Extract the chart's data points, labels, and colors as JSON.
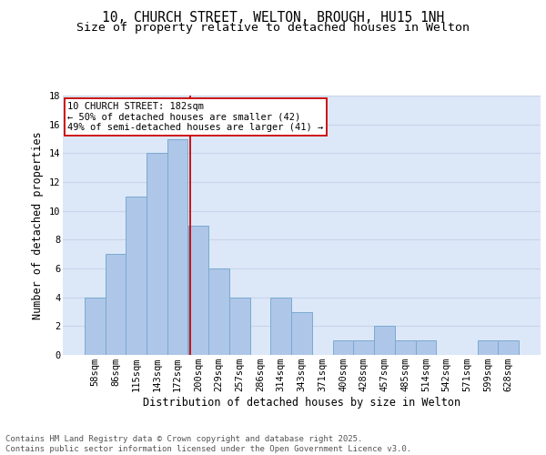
{
  "title_line1": "10, CHURCH STREET, WELTON, BROUGH, HU15 1NH",
  "title_line2": "Size of property relative to detached houses in Welton",
  "xlabel": "Distribution of detached houses by size in Welton",
  "ylabel": "Number of detached properties",
  "categories": [
    "58sqm",
    "86sqm",
    "115sqm",
    "143sqm",
    "172sqm",
    "200sqm",
    "229sqm",
    "257sqm",
    "286sqm",
    "314sqm",
    "343sqm",
    "371sqm",
    "400sqm",
    "428sqm",
    "457sqm",
    "485sqm",
    "514sqm",
    "542sqm",
    "571sqm",
    "599sqm",
    "628sqm"
  ],
  "values": [
    4,
    7,
    11,
    14,
    15,
    9,
    6,
    4,
    0,
    4,
    3,
    0,
    1,
    1,
    2,
    1,
    1,
    0,
    0,
    1,
    1
  ],
  "bar_color": "#aec6e8",
  "bar_edge_color": "#7aaad0",
  "grid_color": "#c8d4e8",
  "background_color": "#dce8f8",
  "annotation_box_text": "10 CHURCH STREET: 182sqm\n← 50% of detached houses are smaller (42)\n49% of semi-detached houses are larger (41) →",
  "annotation_box_color": "#ffffff",
  "annotation_box_edge_color": "#cc0000",
  "ref_line_color": "#cc0000",
  "ylim": [
    0,
    18
  ],
  "yticks": [
    0,
    2,
    4,
    6,
    8,
    10,
    12,
    14,
    16,
    18
  ],
  "footer_text": "Contains HM Land Registry data © Crown copyright and database right 2025.\nContains public sector information licensed under the Open Government Licence v3.0.",
  "title_fontsize": 10.5,
  "subtitle_fontsize": 9.5,
  "axis_label_fontsize": 8.5,
  "tick_fontsize": 7.5,
  "annotation_fontsize": 7.5,
  "footer_fontsize": 6.5
}
